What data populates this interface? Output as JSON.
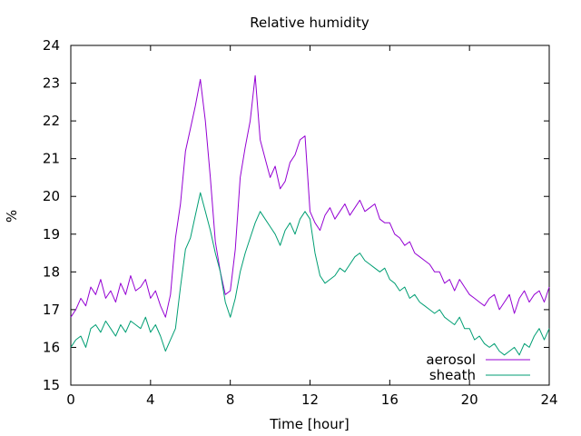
{
  "chart_data": {
    "type": "line",
    "title": "Relative humidity",
    "xlabel": "Time [hour]",
    "ylabel": "%",
    "xlim": [
      0,
      24
    ],
    "ylim": [
      15,
      24
    ],
    "xticks": [
      0,
      4,
      8,
      12,
      16,
      20,
      24
    ],
    "yticks": [
      15,
      16,
      17,
      18,
      19,
      20,
      21,
      22,
      23,
      24
    ],
    "grid": false,
    "legend_position": "bottom-right",
    "series": [
      {
        "name": "aerosol",
        "color": "#9400d3",
        "x": [
          0.0,
          0.25,
          0.5,
          0.75,
          1.0,
          1.25,
          1.5,
          1.75,
          2.0,
          2.25,
          2.5,
          2.75,
          3.0,
          3.25,
          3.5,
          3.75,
          4.0,
          4.25,
          4.5,
          4.75,
          5.0,
          5.25,
          5.5,
          5.75,
          6.0,
          6.25,
          6.5,
          6.75,
          7.0,
          7.25,
          7.5,
          7.75,
          8.0,
          8.25,
          8.5,
          8.75,
          9.0,
          9.25,
          9.5,
          9.75,
          10.0,
          10.25,
          10.5,
          10.75,
          11.0,
          11.25,
          11.5,
          11.75,
          12.0,
          12.25,
          12.5,
          12.75,
          13.0,
          13.25,
          13.5,
          13.75,
          14.0,
          14.25,
          14.5,
          14.75,
          15.0,
          15.25,
          15.5,
          15.75,
          16.0,
          16.25,
          16.5,
          16.75,
          17.0,
          17.25,
          17.5,
          17.75,
          18.0,
          18.25,
          18.5,
          18.75,
          19.0,
          19.25,
          19.5,
          19.75,
          20.0,
          20.25,
          20.5,
          20.75,
          21.0,
          21.25,
          21.5,
          21.75,
          22.0,
          22.25,
          22.5,
          22.75,
          23.0,
          23.25,
          23.5,
          23.75,
          24.0
        ],
        "y": [
          16.8,
          17.0,
          17.3,
          17.1,
          17.6,
          17.4,
          17.8,
          17.3,
          17.5,
          17.2,
          17.7,
          17.4,
          17.9,
          17.5,
          17.6,
          17.8,
          17.3,
          17.5,
          17.1,
          16.8,
          17.4,
          18.9,
          19.8,
          21.2,
          21.8,
          22.4,
          23.1,
          22.0,
          20.5,
          18.8,
          18.0,
          17.4,
          17.5,
          18.6,
          20.5,
          21.3,
          22.0,
          23.2,
          21.5,
          21.0,
          20.5,
          20.8,
          20.2,
          20.4,
          20.9,
          21.1,
          21.5,
          21.6,
          19.6,
          19.3,
          19.1,
          19.5,
          19.7,
          19.4,
          19.6,
          19.8,
          19.5,
          19.7,
          19.9,
          19.6,
          19.7,
          19.8,
          19.4,
          19.3,
          19.3,
          19.0,
          18.9,
          18.7,
          18.8,
          18.5,
          18.4,
          18.3,
          18.2,
          18.0,
          18.0,
          17.7,
          17.8,
          17.5,
          17.8,
          17.6,
          17.4,
          17.3,
          17.2,
          17.1,
          17.3,
          17.4,
          17.0,
          17.2,
          17.4,
          16.9,
          17.3,
          17.5,
          17.2,
          17.4,
          17.5,
          17.2,
          17.6
        ]
      },
      {
        "name": "sheath",
        "color": "#009e73",
        "x": [
          0.0,
          0.25,
          0.5,
          0.75,
          1.0,
          1.25,
          1.5,
          1.75,
          2.0,
          2.25,
          2.5,
          2.75,
          3.0,
          3.25,
          3.5,
          3.75,
          4.0,
          4.25,
          4.5,
          4.75,
          5.0,
          5.25,
          5.5,
          5.75,
          6.0,
          6.25,
          6.5,
          6.75,
          7.0,
          7.25,
          7.5,
          7.75,
          8.0,
          8.25,
          8.5,
          8.75,
          9.0,
          9.25,
          9.5,
          9.75,
          10.0,
          10.25,
          10.5,
          10.75,
          11.0,
          11.25,
          11.5,
          11.75,
          12.0,
          12.25,
          12.5,
          12.75,
          13.0,
          13.25,
          13.5,
          13.75,
          14.0,
          14.25,
          14.5,
          14.75,
          15.0,
          15.25,
          15.5,
          15.75,
          16.0,
          16.25,
          16.5,
          16.75,
          17.0,
          17.25,
          17.5,
          17.75,
          18.0,
          18.25,
          18.5,
          18.75,
          19.0,
          19.25,
          19.5,
          19.75,
          20.0,
          20.25,
          20.5,
          20.75,
          21.0,
          21.25,
          21.5,
          21.75,
          22.0,
          22.25,
          22.5,
          22.75,
          23.0,
          23.25,
          23.5,
          23.75,
          24.0
        ],
        "y": [
          16.0,
          16.2,
          16.3,
          16.0,
          16.5,
          16.6,
          16.4,
          16.7,
          16.5,
          16.3,
          16.6,
          16.4,
          16.7,
          16.6,
          16.5,
          16.8,
          16.4,
          16.6,
          16.3,
          15.9,
          16.2,
          16.5,
          17.6,
          18.6,
          18.9,
          19.5,
          20.1,
          19.6,
          19.1,
          18.5,
          18.0,
          17.2,
          16.8,
          17.3,
          18.0,
          18.5,
          18.9,
          19.3,
          19.6,
          19.4,
          19.2,
          19.0,
          18.7,
          19.1,
          19.3,
          19.0,
          19.4,
          19.6,
          19.4,
          18.5,
          17.9,
          17.7,
          17.8,
          17.9,
          18.1,
          18.0,
          18.2,
          18.4,
          18.5,
          18.3,
          18.2,
          18.1,
          18.0,
          18.1,
          17.8,
          17.7,
          17.5,
          17.6,
          17.3,
          17.4,
          17.2,
          17.1,
          17.0,
          16.9,
          17.0,
          16.8,
          16.7,
          16.6,
          16.8,
          16.5,
          16.5,
          16.2,
          16.3,
          16.1,
          16.0,
          16.1,
          15.9,
          15.8,
          15.9,
          16.0,
          15.8,
          16.1,
          16.0,
          16.3,
          16.5,
          16.2,
          16.5
        ]
      }
    ]
  }
}
